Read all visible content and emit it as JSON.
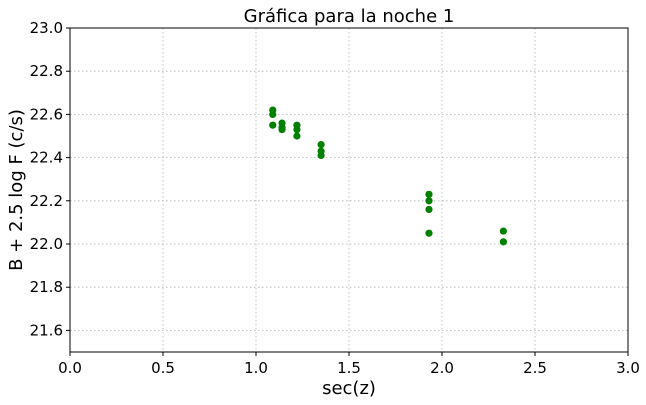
{
  "chart_data": {
    "type": "scatter",
    "title": "Gráfica para la noche 1",
    "xlabel": "sec(z)",
    "ylabel": "B + 2.5 log F (c/s)",
    "xlim": [
      0.0,
      3.0
    ],
    "ylim": [
      21.5,
      23.0
    ],
    "x_ticks": [
      "0.0",
      "0.5",
      "1.0",
      "1.5",
      "2.0",
      "2.5",
      "3.0"
    ],
    "y_ticks": [
      "21.6",
      "21.8",
      "22.0",
      "22.2",
      "22.4",
      "22.6",
      "22.8",
      "23.0"
    ],
    "grid": true,
    "marker_color": "#008000",
    "series": [
      {
        "x": [
          1.09,
          1.09,
          1.09,
          1.14,
          1.14,
          1.14,
          1.22,
          1.22,
          1.22,
          1.35,
          1.35,
          1.35,
          1.93,
          1.93,
          1.93,
          1.93,
          2.33,
          2.33
        ],
        "y": [
          22.62,
          22.6,
          22.55,
          22.56,
          22.54,
          22.53,
          22.55,
          22.53,
          22.5,
          22.46,
          22.43,
          22.41,
          22.23,
          22.2,
          22.16,
          22.05,
          22.06,
          22.01
        ]
      }
    ]
  }
}
